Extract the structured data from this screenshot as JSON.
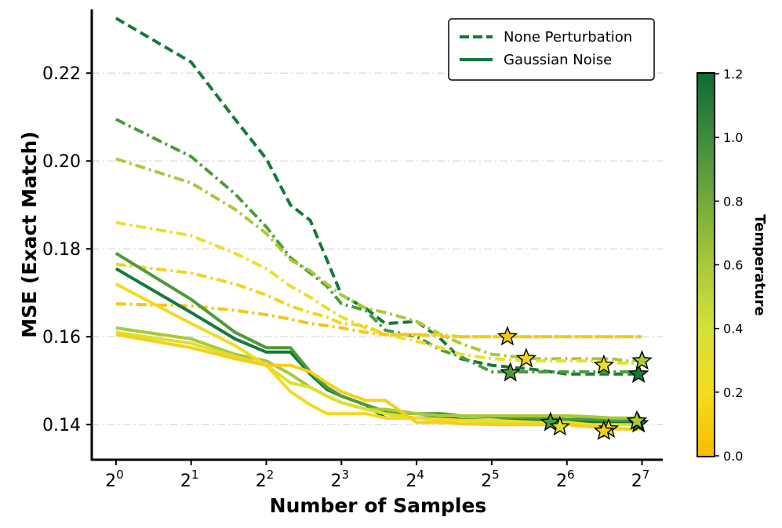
{
  "chart_data": {
    "type": "line",
    "xlabel": "Number of Samples",
    "ylabel": "MSE (Exact Match)",
    "x_scale": "log2",
    "x": [
      1,
      2,
      3,
      4,
      5,
      6,
      7,
      8,
      10,
      12,
      16,
      20,
      24,
      32,
      48,
      64,
      80,
      96,
      112,
      128
    ],
    "xticks": [
      1,
      2,
      4,
      8,
      16,
      32,
      64,
      128
    ],
    "xtick_labels": [
      {
        "base": "2",
        "exp": "0"
      },
      {
        "base": "2",
        "exp": "1"
      },
      {
        "base": "2",
        "exp": "2"
      },
      {
        "base": "2",
        "exp": "3"
      },
      {
        "base": "2",
        "exp": "4"
      },
      {
        "base": "2",
        "exp": "5"
      },
      {
        "base": "2",
        "exp": "6"
      },
      {
        "base": "2",
        "exp": "7"
      }
    ],
    "yticks": [
      0.14,
      0.16,
      0.18,
      0.2,
      0.22
    ],
    "ytick_labels": [
      "0.14",
      "0.16",
      "0.18",
      "0.20",
      "0.22"
    ],
    "xlim": [
      0.8,
      155
    ],
    "ylim": [
      0.132,
      0.2345
    ],
    "grid": {
      "y": true,
      "style": "dashdot"
    },
    "legend": {
      "position": "top-right",
      "entries": [
        {
          "label": "None Perturbation",
          "style": "dashed",
          "color": "#137a3c"
        },
        {
          "label": "Gaussian Noise",
          "style": "solid",
          "color": "#137a3c"
        }
      ]
    },
    "colorbar": {
      "label": "Temperature",
      "min": 0.0,
      "max": 1.2,
      "ticks": [
        "0.0",
        "0.2",
        "0.4",
        "0.6",
        "0.8",
        "1.0",
        "1.2"
      ],
      "colors": [
        "#f5bd00",
        "#f4dc1e",
        "#d6e03a",
        "#a8c93a",
        "#73a93a",
        "#3f8a3d",
        "#0f6b36"
      ]
    },
    "series": [
      {
        "style": "dashed",
        "temperature": 1.2,
        "color": "#137a3c",
        "values": [
          0.2325,
          0.2225,
          0.2095,
          0.2005,
          0.19,
          0.1865,
          0.1775,
          0.1695,
          0.1665,
          0.163,
          0.1635,
          0.1595,
          0.155,
          0.1535,
          0.1525,
          0.1515,
          0.1515,
          0.1515,
          0.1515,
          0.1515
        ],
        "best": {
          "x": 124,
          "y": 0.1515
        }
      },
      {
        "style": "dashdot",
        "temperature": 1.0,
        "color": "#4e9a3a",
        "values": [
          0.2095,
          0.201,
          0.1925,
          0.185,
          0.178,
          0.1745,
          0.1715,
          0.1675,
          0.166,
          0.1615,
          0.16,
          0.157,
          0.1555,
          0.152,
          0.152,
          0.152,
          0.152,
          0.152,
          0.152,
          0.152
        ],
        "best": {
          "x": 38,
          "y": 0.1518
        }
      },
      {
        "style": "dashdot",
        "temperature": 0.8,
        "color": "#a8c93a",
        "values": [
          0.2005,
          0.195,
          0.189,
          0.1835,
          0.1775,
          0.175,
          0.172,
          0.1695,
          0.1665,
          0.1655,
          0.1635,
          0.1605,
          0.1585,
          0.156,
          0.155,
          0.155,
          0.155,
          0.155,
          0.1545,
          0.1545
        ],
        "best": {
          "x": 128,
          "y": 0.1545
        }
      },
      {
        "style": "dashdot",
        "temperature": 0.6,
        "color": "#e8e02a",
        "values": [
          0.186,
          0.183,
          0.179,
          0.1755,
          0.1715,
          0.169,
          0.1665,
          0.1645,
          0.162,
          0.1605,
          0.159,
          0.1575,
          0.156,
          0.155,
          0.1545,
          0.1545,
          0.1545,
          0.154,
          0.154,
          0.154
        ],
        "best": {
          "x": 90,
          "y": 0.1535
        }
      },
      {
        "style": "dashdot",
        "temperature": 0.4,
        "color": "#f1d51e",
        "values": [
          0.1765,
          0.1745,
          0.172,
          0.1695,
          0.167,
          0.1655,
          0.1645,
          0.163,
          0.1625,
          0.1605,
          0.1605,
          0.1605,
          0.16,
          0.16,
          0.16,
          0.16,
          0.16,
          0.16,
          0.16,
          0.16
        ],
        "best": {
          "x": 44,
          "y": 0.155
        }
      },
      {
        "style": "dashdot",
        "temperature": 0.2,
        "color": "#f5c518",
        "values": [
          0.1675,
          0.167,
          0.166,
          0.165,
          0.164,
          0.163,
          0.1625,
          0.162,
          0.161,
          0.1605,
          0.1605,
          0.16,
          0.16,
          0.16,
          0.16,
          0.16,
          0.16,
          0.16,
          0.16,
          0.16
        ],
        "best": {
          "x": 37,
          "y": 0.16
        }
      },
      {
        "style": "solid",
        "temperature": 1.2,
        "color": "#137a3c",
        "values": [
          0.1755,
          0.1655,
          0.1595,
          0.1565,
          0.1565,
          0.1515,
          0.148,
          0.1465,
          0.1445,
          0.1415,
          0.1415,
          0.1415,
          0.1412,
          0.141,
          0.141,
          0.1405,
          0.1405,
          0.1405,
          0.1405,
          0.1405
        ],
        "best": {
          "x": 124,
          "y": 0.1402
        }
      },
      {
        "style": "solid",
        "temperature": 1.0,
        "color": "#4e9a3a",
        "values": [
          0.179,
          0.1685,
          0.161,
          0.1575,
          0.1575,
          0.152,
          0.1485,
          0.1465,
          0.1445,
          0.143,
          0.1425,
          0.1425,
          0.142,
          0.1418,
          0.1415,
          0.1412,
          0.1412,
          0.141,
          0.141,
          0.141
        ],
        "best": {
          "x": 55,
          "y": 0.1405
        }
      },
      {
        "style": "solid",
        "temperature": 0.8,
        "color": "#a8c93a",
        "values": [
          0.162,
          0.1595,
          0.156,
          0.1545,
          0.1515,
          0.1485,
          0.1465,
          0.145,
          0.1435,
          0.1435,
          0.1425,
          0.142,
          0.142,
          0.142,
          0.142,
          0.142,
          0.1418,
          0.1415,
          0.1415,
          0.1415
        ],
        "best": {
          "x": 122,
          "y": 0.1408
        }
      },
      {
        "style": "solid",
        "temperature": 0.6,
        "color": "#dde02c",
        "values": [
          0.161,
          0.1585,
          0.1555,
          0.1535,
          0.1495,
          0.1485,
          0.1465,
          0.145,
          0.1435,
          0.1425,
          0.1415,
          0.141,
          0.141,
          0.1405,
          0.1405,
          0.14,
          0.14,
          0.14,
          0.14,
          0.14
        ],
        "best": {
          "x": 60,
          "y": 0.1395
        }
      },
      {
        "style": "solid",
        "temperature": 0.4,
        "color": "#f1db22",
        "values": [
          0.172,
          0.163,
          0.158,
          0.1535,
          0.1475,
          0.1445,
          0.1425,
          0.1425,
          0.1425,
          0.1415,
          0.1415,
          0.1412,
          0.141,
          0.141,
          0.1405,
          0.1405,
          0.14,
          0.139,
          0.139,
          0.139
        ],
        "best": {
          "x": 94,
          "y": 0.139
        }
      },
      {
        "style": "solid",
        "temperature": 0.2,
        "color": "#f5cf1b",
        "values": [
          0.1605,
          0.1575,
          0.155,
          0.1535,
          0.1535,
          0.152,
          0.1495,
          0.1475,
          0.1455,
          0.1455,
          0.1405,
          0.1405,
          0.1402,
          0.14,
          0.14,
          0.14,
          0.1395,
          0.1392,
          0.139,
          0.139
        ],
        "best": {
          "x": 90,
          "y": 0.1385
        }
      }
    ]
  }
}
